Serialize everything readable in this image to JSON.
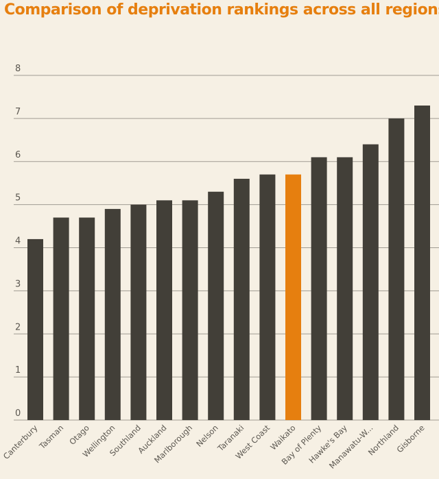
{
  "chart_data": {
    "type": "bar",
    "title": "Comparison of deprivation rankings across all regions",
    "categories": [
      "Canterbury",
      "Tasman",
      "Otago",
      "Wellington",
      "Southland",
      "Auckland",
      "Marlborough",
      "Nelson",
      "Taranaki",
      "West Coast",
      "Waikato",
      "Bay of Plenty",
      "Hawke's Bay",
      "Manawatu-W...",
      "Northland",
      "Gisborne"
    ],
    "values": [
      4.2,
      4.7,
      4.7,
      4.9,
      5.0,
      5.1,
      5.1,
      5.3,
      5.6,
      5.7,
      5.7,
      6.1,
      6.1,
      6.4,
      7.0,
      7.3
    ],
    "highlight": "Waikato",
    "ylim": [
      0,
      8
    ],
    "yticks": [
      "0",
      "1",
      "2",
      "3",
      "4",
      "5",
      "6",
      "7",
      "8"
    ],
    "grid": true,
    "xlabel": "",
    "ylabel": "",
    "colors": {
      "background": "#f6f0e4",
      "bar": "#423f38",
      "highlight": "#e67f0f",
      "title": "#e67f0f",
      "grid": "#a09b92",
      "text": "#5b5750"
    }
  }
}
